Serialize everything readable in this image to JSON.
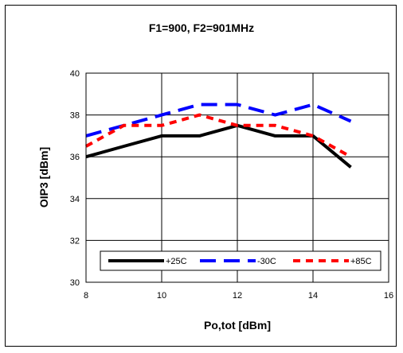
{
  "chart_data": {
    "type": "line",
    "title": "F1=900, F2=901MHz",
    "xlabel": "Po,tot [dBm]",
    "ylabel": "OIP3 [dBm]",
    "xlim": [
      8,
      16
    ],
    "ylim": [
      30,
      40
    ],
    "xticks": [
      8,
      10,
      12,
      14,
      16
    ],
    "yticks": [
      30,
      32,
      34,
      36,
      38,
      40
    ],
    "grid": true,
    "legend_position": "bottom",
    "series": [
      {
        "name": "+25C",
        "color": "#000000",
        "dash": "solid",
        "x": [
          8,
          9,
          10,
          11,
          12,
          13,
          14,
          15
        ],
        "y": [
          36.0,
          36.5,
          37.0,
          37.0,
          37.5,
          37.0,
          37.0,
          35.5
        ]
      },
      {
        "name": "-30C",
        "color": "#0000FF",
        "dash": "long-dash",
        "x": [
          8,
          9,
          10,
          11,
          12,
          13,
          14,
          15
        ],
        "y": [
          37.0,
          37.5,
          38.0,
          38.5,
          38.5,
          38.0,
          38.5,
          37.7
        ]
      },
      {
        "name": "+85C",
        "color": "#FF0000",
        "dash": "short-dash",
        "x": [
          8,
          9,
          10,
          11,
          12,
          13,
          14,
          15
        ],
        "y": [
          36.5,
          37.5,
          37.5,
          38.0,
          37.5,
          37.5,
          37.0,
          36.0
        ]
      }
    ]
  }
}
